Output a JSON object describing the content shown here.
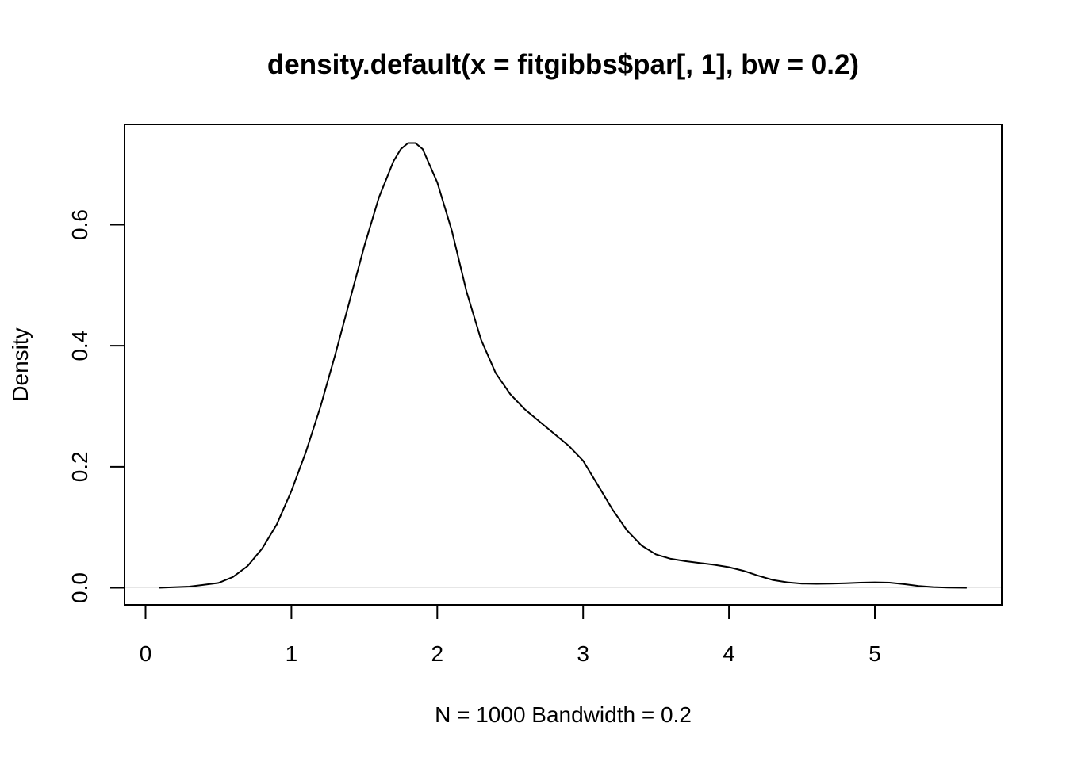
{
  "chart_data": {
    "type": "line",
    "title": "density.default(x = fitgibbs$par[, 1], bw = 0.2)",
    "xlabel": "N = 1000   Bandwidth = 0.2",
    "ylabel": "Density",
    "xlim": [
      0,
      5.7
    ],
    "ylim": [
      0,
      0.75
    ],
    "x_ticks": [
      "0",
      "1",
      "2",
      "3",
      "4",
      "5"
    ],
    "y_ticks": [
      "0.0",
      "0.2",
      "0.4",
      "0.6"
    ],
    "grid": false,
    "legend": "none",
    "series": [
      {
        "color": "#000000",
        "x": [
          0.09,
          0.3,
          0.5,
          0.6,
          0.7,
          0.8,
          0.9,
          1.0,
          1.1,
          1.2,
          1.3,
          1.4,
          1.5,
          1.6,
          1.7,
          1.75,
          1.8,
          1.85,
          1.9,
          2.0,
          2.1,
          2.2,
          2.3,
          2.4,
          2.5,
          2.6,
          2.7,
          2.8,
          2.9,
          3.0,
          3.1,
          3.2,
          3.3,
          3.4,
          3.5,
          3.6,
          3.7,
          3.8,
          3.9,
          4.0,
          4.1,
          4.2,
          4.3,
          4.4,
          4.5,
          4.6,
          4.7,
          4.8,
          4.9,
          5.0,
          5.1,
          5.2,
          5.3,
          5.4,
          5.5,
          5.63
        ],
        "y": [
          0.0,
          0.002,
          0.008,
          0.018,
          0.036,
          0.065,
          0.105,
          0.16,
          0.225,
          0.3,
          0.385,
          0.475,
          0.565,
          0.645,
          0.705,
          0.725,
          0.735,
          0.735,
          0.725,
          0.67,
          0.59,
          0.49,
          0.41,
          0.355,
          0.32,
          0.295,
          0.275,
          0.255,
          0.235,
          0.21,
          0.17,
          0.13,
          0.095,
          0.07,
          0.055,
          0.048,
          0.044,
          0.041,
          0.038,
          0.034,
          0.028,
          0.02,
          0.013,
          0.009,
          0.007,
          0.0065,
          0.0068,
          0.0075,
          0.0085,
          0.009,
          0.0085,
          0.006,
          0.003,
          0.0012,
          0.0004,
          0.0
        ]
      }
    ]
  }
}
